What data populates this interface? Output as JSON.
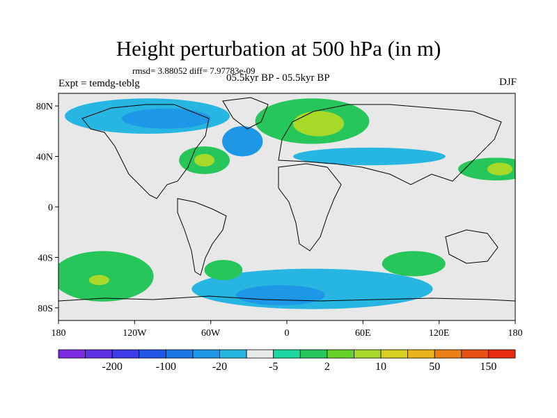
{
  "title": "Height perturbation at 500 hPa (in m)",
  "stats_line": "rmsd= 3.88052 diff= 7.97783e-09",
  "experiment": "Expt = temdg-teblg",
  "period": "05.5kyr BP - 05.5kyr BP",
  "season": "DJF",
  "axes": {
    "lon_ticks": [
      {
        "value": -180,
        "label": "180"
      },
      {
        "value": -120,
        "label": "120W"
      },
      {
        "value": -60,
        "label": "60W"
      },
      {
        "value": 0,
        "label": "0"
      },
      {
        "value": 60,
        "label": "60E"
      },
      {
        "value": 120,
        "label": "120E"
      },
      {
        "value": 180,
        "label": "180"
      }
    ],
    "lat_ticks": [
      {
        "value": 80,
        "label": "80N"
      },
      {
        "value": 40,
        "label": "40N"
      },
      {
        "value": 0,
        "label": "0"
      },
      {
        "value": -40,
        "label": "40S"
      },
      {
        "value": -80,
        "label": "80S"
      }
    ],
    "lon_range": [
      -180,
      180
    ],
    "lat_range": [
      -90,
      90
    ]
  },
  "colorbar": {
    "colors": [
      "#7d2be2",
      "#6030e6",
      "#3c3de8",
      "#2155e8",
      "#1a78e6",
      "#1e97e6",
      "#27b6e2",
      "#e8e8e8",
      "#1ed6a0",
      "#27c65a",
      "#68d12a",
      "#a8d928",
      "#d8cf20",
      "#ecb41c",
      "#ec8016",
      "#e85014",
      "#e62b12"
    ],
    "labels": [
      {
        "boundary": 2,
        "text": "-200"
      },
      {
        "boundary": 4,
        "text": "-100"
      },
      {
        "boundary": 6,
        "text": "-20"
      },
      {
        "boundary": 8,
        "text": "-5"
      },
      {
        "boundary": 10,
        "text": "2"
      },
      {
        "boundary": 12,
        "text": "10"
      },
      {
        "boundary": 14,
        "text": "50"
      },
      {
        "boundary": 16,
        "text": "150"
      }
    ]
  },
  "map_regions": [
    {
      "name": "arctic-negative-band",
      "cls": "blue",
      "lon": -110,
      "lat": 72,
      "rlon": 65,
      "rlat": 14
    },
    {
      "name": "arctic-negative-core",
      "cls": "blue2",
      "lon": -95,
      "lat": 70,
      "rlon": 35,
      "rlat": 8
    },
    {
      "name": "north-atlantic-negative",
      "cls": "blue2",
      "lon": -35,
      "lat": 52,
      "rlon": 16,
      "rlat": 12
    },
    {
      "name": "europe-positive",
      "cls": "green",
      "lon": 20,
      "lat": 68,
      "rlon": 45,
      "rlat": 18
    },
    {
      "name": "europe-positive-core",
      "cls": "yellow",
      "lon": 25,
      "lat": 66,
      "rlon": 20,
      "rlat": 10
    },
    {
      "name": "east-us-positive",
      "cls": "green",
      "lon": -65,
      "lat": 37,
      "rlon": 20,
      "rlat": 11
    },
    {
      "name": "east-us-positive-core",
      "cls": "yellow",
      "lon": -65,
      "lat": 37,
      "rlon": 8,
      "rlat": 5
    },
    {
      "name": "asia-negative",
      "cls": "blue",
      "lon": 65,
      "lat": 40,
      "rlon": 60,
      "rlat": 7
    },
    {
      "name": "north-pacific-positive",
      "cls": "green",
      "lon": 165,
      "lat": 30,
      "rlon": 30,
      "rlat": 9
    },
    {
      "name": "north-pacific-positive-core",
      "cls": "yellow",
      "lon": 168,
      "lat": 30,
      "rlon": 10,
      "rlat": 5
    },
    {
      "name": "south-pacific-positive",
      "cls": "green",
      "lon": -145,
      "lat": -55,
      "rlon": 40,
      "rlat": 20
    },
    {
      "name": "south-pacific-positive-core",
      "cls": "yellow",
      "lon": -148,
      "lat": -58,
      "rlon": 8,
      "rlat": 4
    },
    {
      "name": "southern-ocean-negative",
      "cls": "blue",
      "lon": 20,
      "lat": -65,
      "rlon": 95,
      "rlat": 16
    },
    {
      "name": "southern-ocean-negative-core",
      "cls": "blue2",
      "lon": -5,
      "lat": -70,
      "rlon": 35,
      "rlat": 8
    },
    {
      "name": "south-atlantic-positive",
      "cls": "green",
      "lon": -50,
      "lat": -50,
      "rlon": 15,
      "rlat": 8
    },
    {
      "name": "indian-ocean-positive",
      "cls": "green",
      "lon": 100,
      "lat": -45,
      "rlon": 25,
      "rlat": 10
    }
  ]
}
